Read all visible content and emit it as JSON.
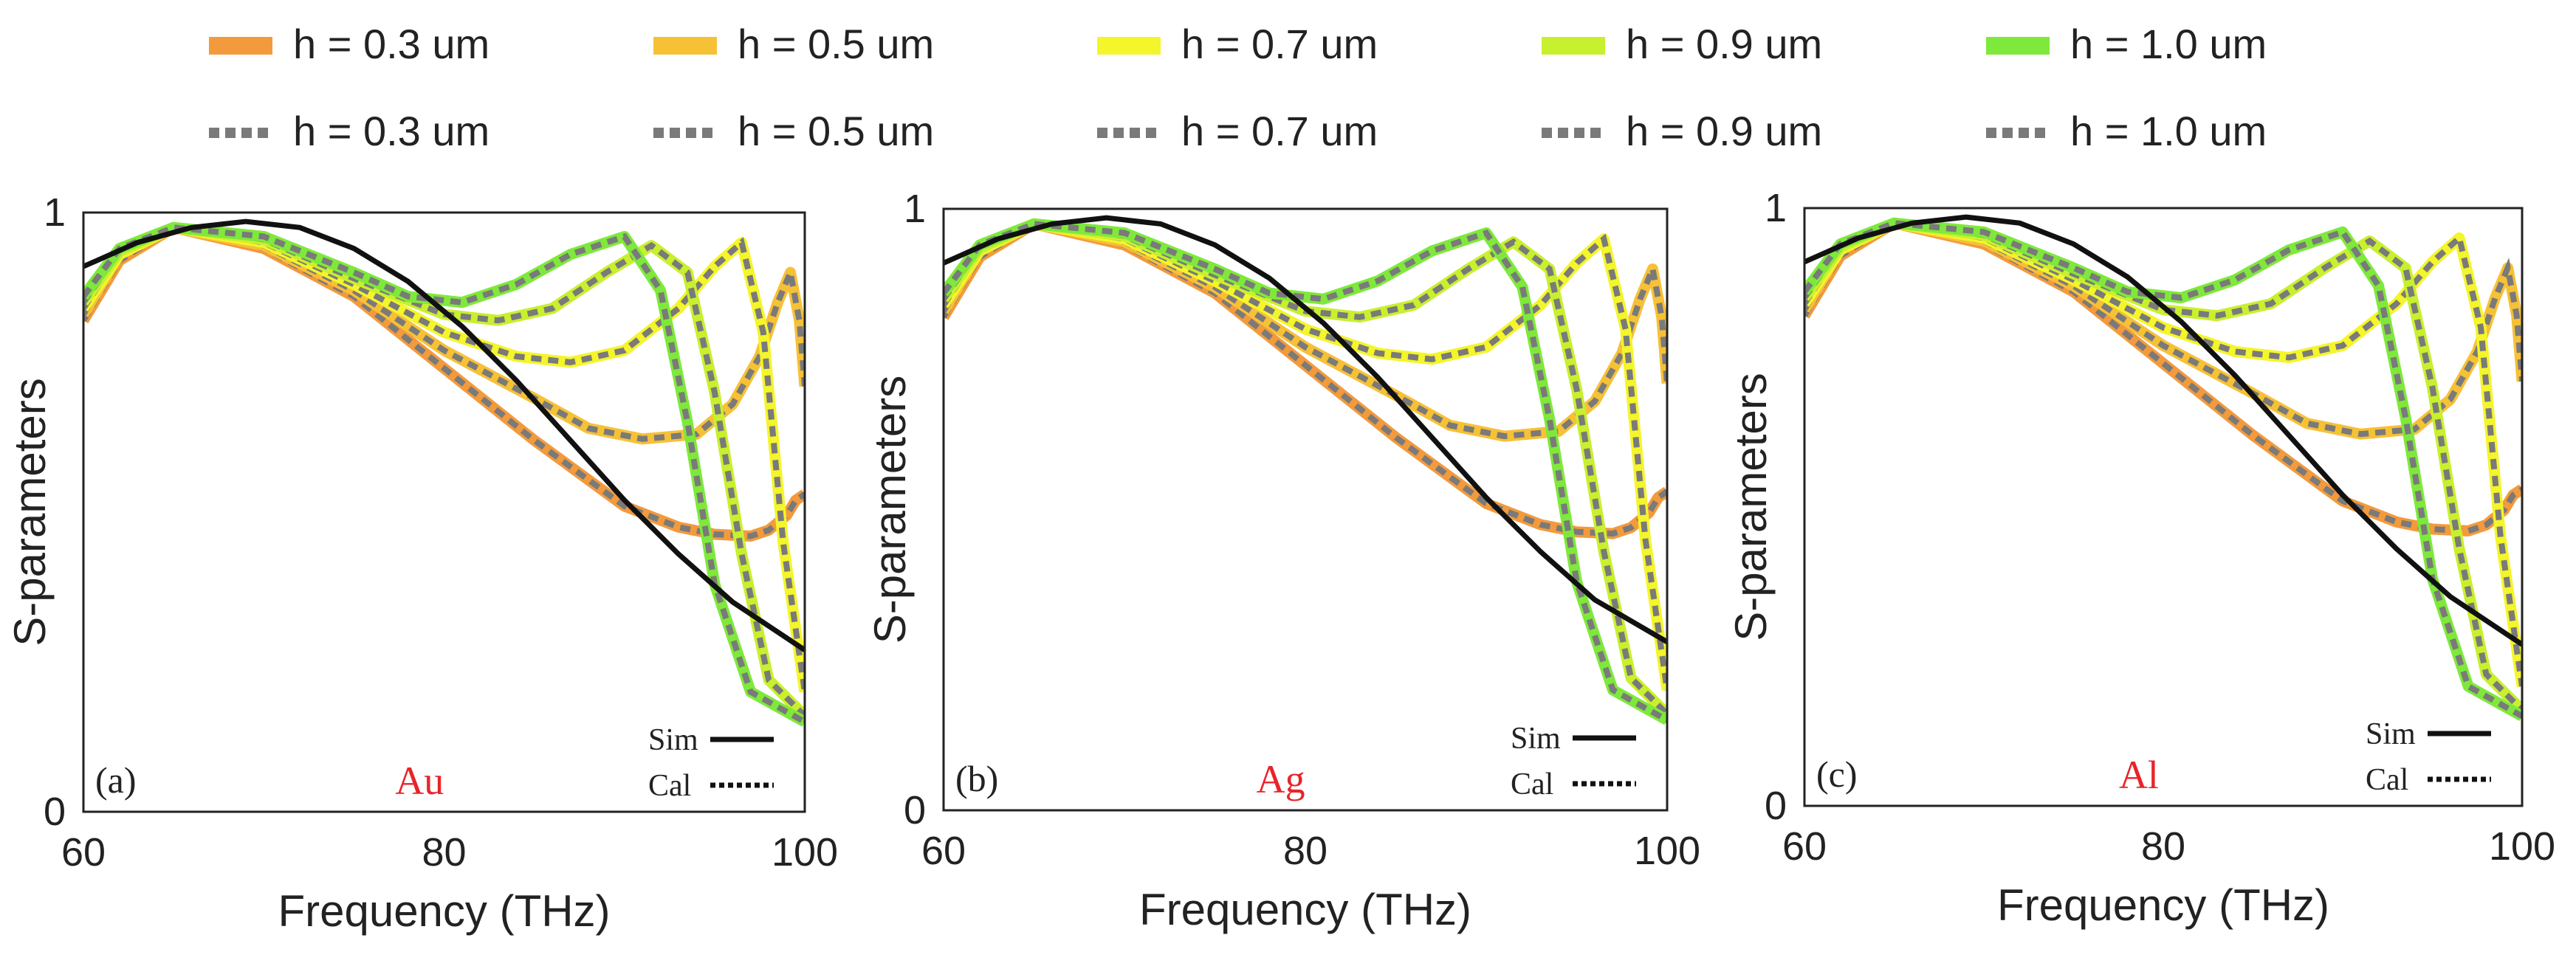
{
  "legend": {
    "rows": [
      [
        {
          "label": "h = 0.3 um",
          "color": "#f39a3c",
          "style": "solid"
        },
        {
          "label": "h = 0.5 um",
          "color": "#f7c136",
          "style": "solid"
        },
        {
          "label": "h = 0.7 um",
          "color": "#f4f52a",
          "style": "solid"
        },
        {
          "label": "h = 0.9 um",
          "color": "#c8f02e",
          "style": "solid"
        },
        {
          "label": "h = 1.0 um",
          "color": "#7ee93a",
          "style": "solid"
        }
      ],
      [
        {
          "label": "h = 0.3 um",
          "color": "#7a7a7a",
          "style": "dotted"
        },
        {
          "label": "h = 0.5 um",
          "color": "#7a7a7a",
          "style": "dotted"
        },
        {
          "label": "h = 0.7 um",
          "color": "#7a7a7a",
          "style": "dotted"
        },
        {
          "label": "h = 0.9 um",
          "color": "#7a7a7a",
          "style": "dotted"
        },
        {
          "label": "h = 1.0 um",
          "color": "#7a7a7a",
          "style": "dotted"
        }
      ]
    ]
  },
  "colors": {
    "sim": "#111111",
    "cal_dots": "#7a7a7a",
    "material_label": "#e8242a"
  },
  "chart_data": [
    {
      "type": "line",
      "panel_label": "(a)",
      "material": "Au",
      "xlabel": "Frequency (THz)",
      "ylabel": "S-parameters",
      "xlim": [
        60,
        100
      ],
      "ylim": [
        0,
        1
      ],
      "xticks": [
        "60",
        "80",
        "100"
      ],
      "yticks": [
        "0",
        "1"
      ],
      "inset_legend": {
        "sim_label": "Sim",
        "cal_label": "Cal"
      },
      "series": [
        {
          "name": "Sim",
          "style": "solid",
          "color": "#111111",
          "x": [
            60,
            63,
            66,
            69,
            72,
            75,
            78,
            81,
            84,
            87,
            90,
            93,
            96,
            100
          ],
          "y": [
            0.91,
            0.95,
            0.975,
            0.985,
            0.975,
            0.94,
            0.885,
            0.81,
            0.72,
            0.62,
            0.52,
            0.43,
            0.35,
            0.27
          ]
        },
        {
          "name": "h = 0.3 um",
          "style": "overlay",
          "color": "#f39a3c",
          "x": [
            60,
            62,
            65,
            70,
            75,
            80,
            85,
            90,
            93,
            95,
            97,
            98,
            99,
            99.5,
            100
          ],
          "y": [
            0.82,
            0.92,
            0.975,
            0.94,
            0.86,
            0.74,
            0.62,
            0.51,
            0.475,
            0.463,
            0.46,
            0.47,
            0.495,
            0.52,
            0.53
          ]
        },
        {
          "name": "h = 0.5 um",
          "style": "overlay",
          "color": "#f7c136",
          "x": [
            60,
            62,
            65,
            70,
            75,
            80,
            85,
            88,
            91,
            94,
            96,
            97.5,
            98.5,
            99.2,
            99.7,
            100
          ],
          "y": [
            0.83,
            0.93,
            0.975,
            0.945,
            0.87,
            0.77,
            0.69,
            0.64,
            0.622,
            0.63,
            0.68,
            0.76,
            0.85,
            0.9,
            0.82,
            0.71
          ]
        },
        {
          "name": "h = 0.7 um",
          "style": "overlay",
          "color": "#f4f52a",
          "x": [
            60,
            62,
            65,
            70,
            75,
            80,
            84,
            87,
            90,
            93,
            95,
            96.5,
            97.7,
            98.8,
            100
          ],
          "y": [
            0.84,
            0.93,
            0.975,
            0.95,
            0.88,
            0.8,
            0.76,
            0.75,
            0.77,
            0.84,
            0.91,
            0.95,
            0.8,
            0.45,
            0.2
          ]
        },
        {
          "name": "h = 0.9 um",
          "style": "overlay",
          "color": "#c8f02e",
          "x": [
            60,
            62,
            65,
            70,
            75,
            80,
            83,
            86,
            89,
            91.5,
            93.5,
            95,
            96.5,
            98,
            100
          ],
          "y": [
            0.85,
            0.935,
            0.975,
            0.955,
            0.89,
            0.83,
            0.82,
            0.84,
            0.9,
            0.945,
            0.9,
            0.7,
            0.43,
            0.22,
            0.16
          ]
        },
        {
          "name": "h = 1.0 um",
          "style": "overlay",
          "color": "#7ee93a",
          "x": [
            60,
            62,
            65,
            70,
            75,
            78,
            81,
            84,
            87,
            90,
            92,
            93.5,
            95,
            97,
            100
          ],
          "y": [
            0.86,
            0.94,
            0.975,
            0.96,
            0.9,
            0.86,
            0.85,
            0.88,
            0.93,
            0.96,
            0.87,
            0.65,
            0.38,
            0.2,
            0.15
          ]
        }
      ]
    },
    {
      "type": "line",
      "panel_label": "(b)",
      "material": "Ag",
      "xlabel": "Frequency (THz)",
      "ylabel": "S-parameters",
      "xlim": [
        60,
        100
      ],
      "ylim": [
        0,
        1
      ],
      "xticks": [
        "60",
        "80",
        "100"
      ],
      "yticks": [
        "0",
        "1"
      ],
      "inset_legend": {
        "sim_label": "Sim",
        "cal_label": "Cal"
      },
      "series": [
        {
          "name": "Sim",
          "style": "solid",
          "color": "#111111",
          "x": [
            60,
            63,
            66,
            69,
            72,
            75,
            78,
            81,
            84,
            87,
            90,
            93,
            96,
            100
          ],
          "y": [
            0.91,
            0.95,
            0.975,
            0.985,
            0.975,
            0.94,
            0.885,
            0.81,
            0.72,
            0.62,
            0.52,
            0.43,
            0.35,
            0.28
          ]
        },
        {
          "name": "h = 0.3 um",
          "style": "overlay",
          "color": "#f39a3c",
          "x": [
            60,
            62,
            65,
            70,
            75,
            80,
            85,
            90,
            93,
            95,
            97,
            98,
            99,
            99.5,
            100
          ],
          "y": [
            0.82,
            0.92,
            0.975,
            0.94,
            0.86,
            0.74,
            0.62,
            0.51,
            0.475,
            0.463,
            0.46,
            0.47,
            0.495,
            0.52,
            0.53
          ]
        },
        {
          "name": "h = 0.5 um",
          "style": "overlay",
          "color": "#f7c136",
          "x": [
            60,
            62,
            65,
            70,
            75,
            80,
            85,
            88,
            91,
            94,
            96,
            97.5,
            98.5,
            99.2,
            99.7,
            100
          ],
          "y": [
            0.83,
            0.93,
            0.975,
            0.945,
            0.87,
            0.77,
            0.69,
            0.64,
            0.622,
            0.63,
            0.68,
            0.76,
            0.85,
            0.9,
            0.82,
            0.71
          ]
        },
        {
          "name": "h = 0.7 um",
          "style": "overlay",
          "color": "#f4f52a",
          "x": [
            60,
            62,
            65,
            70,
            75,
            80,
            84,
            87,
            90,
            93,
            95,
            96.5,
            97.7,
            98.8,
            100
          ],
          "y": [
            0.84,
            0.93,
            0.975,
            0.95,
            0.88,
            0.8,
            0.76,
            0.75,
            0.77,
            0.84,
            0.91,
            0.95,
            0.8,
            0.45,
            0.2
          ]
        },
        {
          "name": "h = 0.9 um",
          "style": "overlay",
          "color": "#c8f02e",
          "x": [
            60,
            62,
            65,
            70,
            75,
            80,
            83,
            86,
            89,
            91.5,
            93.5,
            95,
            96.5,
            98,
            100
          ],
          "y": [
            0.85,
            0.935,
            0.975,
            0.955,
            0.89,
            0.83,
            0.82,
            0.84,
            0.9,
            0.945,
            0.9,
            0.7,
            0.43,
            0.22,
            0.16
          ]
        },
        {
          "name": "h = 1.0 um",
          "style": "overlay",
          "color": "#7ee93a",
          "x": [
            60,
            62,
            65,
            70,
            75,
            78,
            81,
            84,
            87,
            90,
            92,
            93.5,
            95,
            97,
            100
          ],
          "y": [
            0.86,
            0.94,
            0.975,
            0.96,
            0.9,
            0.86,
            0.85,
            0.88,
            0.93,
            0.96,
            0.87,
            0.65,
            0.38,
            0.2,
            0.15
          ]
        }
      ]
    },
    {
      "type": "line",
      "panel_label": "(c)",
      "material": "Al",
      "xlabel": "Frequency (THz)",
      "ylabel": "S-parameters",
      "xlim": [
        60,
        100
      ],
      "ylim": [
        0,
        1
      ],
      "xticks": [
        "60",
        "80",
        "100"
      ],
      "yticks": [
        "0",
        "1"
      ],
      "inset_legend": {
        "sim_label": "Sim",
        "cal_label": "Cal"
      },
      "series": [
        {
          "name": "Sim",
          "style": "solid",
          "color": "#111111",
          "x": [
            60,
            63,
            66,
            69,
            72,
            75,
            78,
            81,
            84,
            87,
            90,
            93,
            96,
            100
          ],
          "y": [
            0.91,
            0.95,
            0.975,
            0.985,
            0.975,
            0.94,
            0.885,
            0.81,
            0.72,
            0.62,
            0.52,
            0.43,
            0.35,
            0.27
          ]
        },
        {
          "name": "h = 0.3 um",
          "style": "overlay",
          "color": "#f39a3c",
          "x": [
            60,
            62,
            65,
            70,
            75,
            80,
            85,
            90,
            93,
            95,
            97,
            98,
            99,
            99.5,
            100
          ],
          "y": [
            0.82,
            0.92,
            0.975,
            0.94,
            0.86,
            0.74,
            0.62,
            0.51,
            0.475,
            0.463,
            0.46,
            0.47,
            0.495,
            0.52,
            0.53
          ]
        },
        {
          "name": "h = 0.5 um",
          "style": "overlay",
          "color": "#f7c136",
          "x": [
            60,
            62,
            65,
            70,
            75,
            80,
            85,
            88,
            91,
            94,
            96,
            97.5,
            98.5,
            99.2,
            99.7,
            100
          ],
          "y": [
            0.83,
            0.93,
            0.975,
            0.945,
            0.87,
            0.77,
            0.69,
            0.64,
            0.622,
            0.63,
            0.68,
            0.76,
            0.85,
            0.9,
            0.82,
            0.71
          ]
        },
        {
          "name": "h = 0.7 um",
          "style": "overlay",
          "color": "#f4f52a",
          "x": [
            60,
            62,
            65,
            70,
            75,
            80,
            84,
            87,
            90,
            93,
            95,
            96.5,
            97.7,
            98.8,
            100
          ],
          "y": [
            0.84,
            0.93,
            0.975,
            0.95,
            0.88,
            0.8,
            0.76,
            0.75,
            0.77,
            0.84,
            0.91,
            0.95,
            0.8,
            0.45,
            0.2
          ]
        },
        {
          "name": "h = 0.9 um",
          "style": "overlay",
          "color": "#c8f02e",
          "x": [
            60,
            62,
            65,
            70,
            75,
            80,
            83,
            86,
            89,
            91.5,
            93.5,
            95,
            96.5,
            98,
            100
          ],
          "y": [
            0.85,
            0.935,
            0.975,
            0.955,
            0.89,
            0.83,
            0.82,
            0.84,
            0.9,
            0.945,
            0.9,
            0.7,
            0.43,
            0.22,
            0.16
          ]
        },
        {
          "name": "h = 1.0 um",
          "style": "overlay",
          "color": "#7ee93a",
          "x": [
            60,
            62,
            65,
            70,
            75,
            78,
            81,
            84,
            87,
            90,
            92,
            93.5,
            95,
            97,
            100
          ],
          "y": [
            0.86,
            0.94,
            0.975,
            0.96,
            0.9,
            0.86,
            0.85,
            0.88,
            0.93,
            0.96,
            0.87,
            0.65,
            0.38,
            0.2,
            0.15
          ]
        }
      ]
    }
  ]
}
